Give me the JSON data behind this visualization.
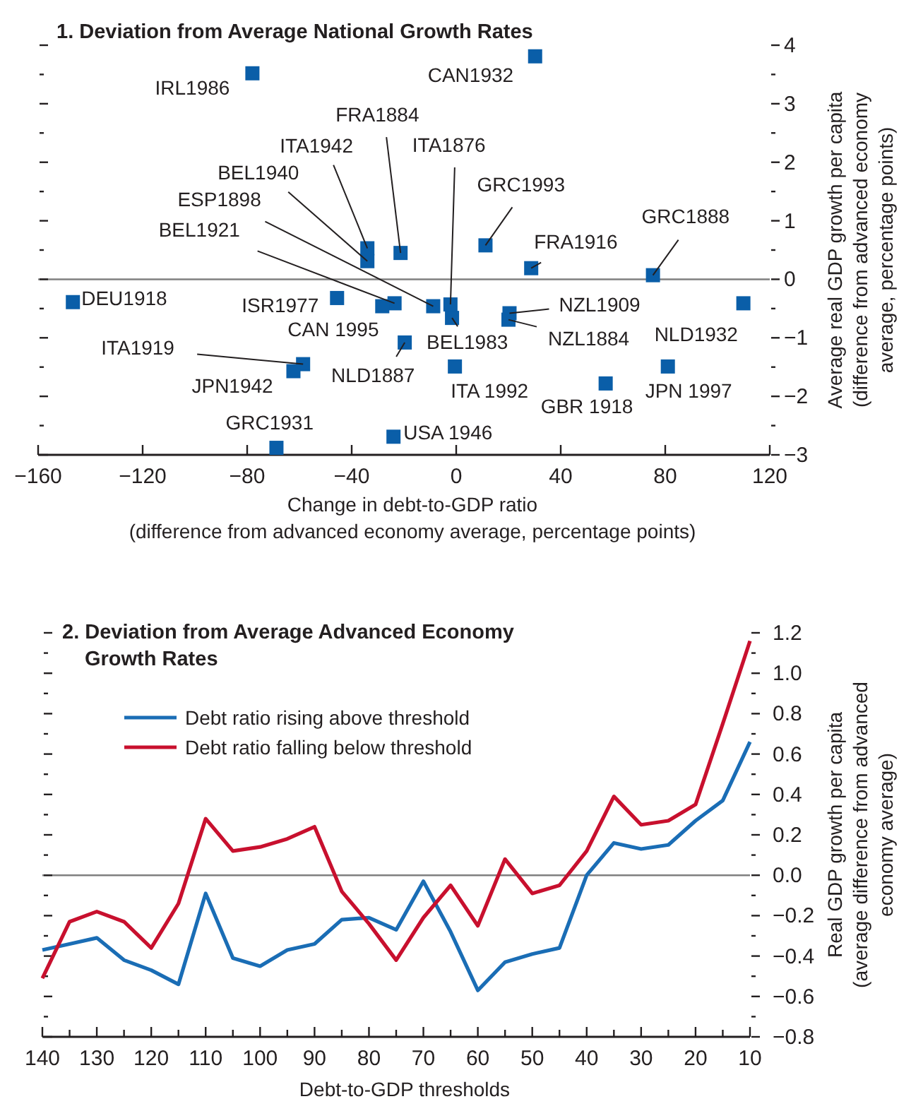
{
  "chart_data": [
    {
      "type": "scatter",
      "title": "1.  Deviation from Average National Growth Rates",
      "xlabel": "Change in debt-to-GDP ratio\n(difference from advanced economy average, percentage points)",
      "ylabel": "Average real GDP growth per capita\n(difference from advanced economy\naverage, percentage points)",
      "marker": "square",
      "grid": false,
      "legend": false,
      "series": [
        {
          "color": "#0a5ea8",
          "x": [
            -78,
            30.2,
            -21.3,
            -34,
            -34,
            -8.8,
            -23.6,
            -2.2,
            11.2,
            28.7,
            75.3,
            -146.7,
            -45.6,
            -28.3,
            -1.6,
            20.4,
            20,
            109.9,
            -19.7,
            -58.6,
            -62.3,
            -0.5,
            57.2,
            81,
            -68.8,
            -24
          ],
          "values": [
            3.52,
            3.81,
            0.45,
            0.53,
            0.31,
            -0.46,
            -0.41,
            -0.43,
            0.58,
            0.19,
            0.07,
            -0.39,
            -0.32,
            -0.46,
            -0.66,
            -0.58,
            -0.69,
            -0.41,
            -1.08,
            -1.45,
            -1.57,
            -1.49,
            -1.78,
            -1.49,
            -2.88,
            -2.69
          ]
        }
      ],
      "annotations": [
        {
          "text": "IRL1986",
          "x": -78,
          "y": 3.52
        },
        {
          "text": "CAN1932",
          "x": 30.2,
          "y": 3.81
        },
        {
          "text": "FRA1884",
          "x": -21.3,
          "y": 0.45
        },
        {
          "text": "ITA1942",
          "x": -34,
          "y": 0.53
        },
        {
          "text": "BEL1940",
          "x": -34,
          "y": 0.31
        },
        {
          "text": "ESP1898",
          "x": -8.8,
          "y": -0.46
        },
        {
          "text": "BEL1921",
          "x": -23.6,
          "y": -0.41
        },
        {
          "text": "ITA1876",
          "x": -2.2,
          "y": -0.43
        },
        {
          "text": "GRC1993",
          "x": 11.2,
          "y": 0.58
        },
        {
          "text": "FRA1916",
          "x": 28.7,
          "y": 0.19
        },
        {
          "text": "GRC1888",
          "x": 75.3,
          "y": 0.07
        },
        {
          "text": "DEU1918",
          "x": -146.7,
          "y": -0.39
        },
        {
          "text": "ISR1977",
          "x": -45.6,
          "y": -0.32
        },
        {
          "text": "CAN 1995",
          "x": -28.3,
          "y": -0.46
        },
        {
          "text": "BEL1983",
          "x": -1.6,
          "y": -0.66
        },
        {
          "text": "NZL1909",
          "x": 20.4,
          "y": -0.58
        },
        {
          "text": "NZL1884",
          "x": 20,
          "y": -0.69
        },
        {
          "text": "NLD1932",
          "x": 109.9,
          "y": -0.41
        },
        {
          "text": "NLD1887",
          "x": -19.7,
          "y": -1.08
        },
        {
          "text": "ITA1919",
          "x": -58.6,
          "y": -1.45
        },
        {
          "text": "JPN1942",
          "x": -62.3,
          "y": -1.57
        },
        {
          "text": "ITA 1992",
          "x": -0.5,
          "y": -1.49
        },
        {
          "text": "GBR 1918",
          "x": 57.2,
          "y": -1.78
        },
        {
          "text": "JPN 1997",
          "x": 81,
          "y": -1.49
        },
        {
          "text": "GRC1931",
          "x": -68.8,
          "y": -2.88
        },
        {
          "text": "USA 1946",
          "x": -24,
          "y": -2.69
        }
      ],
      "xlim": [
        -160,
        120
      ],
      "xticks": [
        {
          "value": -160,
          "label": "−160"
        },
        {
          "value": -120,
          "label": "−120"
        },
        {
          "value": -80,
          "label": "−80"
        },
        {
          "value": -40,
          "label": "−40"
        },
        0,
        40,
        80,
        120
      ],
      "ylim": [
        -3,
        4
      ],
      "yticks": [
        {
          "value": -3,
          "label": "−3"
        },
        {
          "value": -2.5,
          "label": null
        },
        {
          "value": -2,
          "label": "−2"
        },
        {
          "value": -1.5,
          "label": null
        },
        {
          "value": -1,
          "label": "−1"
        },
        {
          "value": -0.5,
          "label": null
        },
        0,
        {
          "value": 0.5,
          "label": null
        },
        1,
        {
          "value": 1.5,
          "label": null
        },
        2,
        {
          "value": 2.5,
          "label": null
        },
        3,
        {
          "value": 3.5,
          "label": null
        },
        4
      ],
      "ref_lines": [
        {
          "axis": "y",
          "value": 0,
          "color": "#808080"
        }
      ]
    },
    {
      "type": "line",
      "title": "2. Deviation from Average Advanced Economy\nGrowth Rates",
      "xlabel": "Debt-to-GDP thresholds",
      "ylabel": "Real GDP growth per capita\n(average difference from advanced\neconomy average)",
      "legend": "top left",
      "grid": false,
      "marker": "none",
      "line_style": "solid",
      "x": [
        140,
        135,
        130,
        125,
        120,
        115,
        110,
        105,
        100,
        95,
        90,
        85,
        80,
        75,
        70,
        65,
        60,
        55,
        50,
        45,
        40,
        35,
        30,
        25,
        20,
        15,
        10
      ],
      "series": [
        {
          "name": "Debt ratio rising above threshold",
          "color": "#1a6db5",
          "values": [
            -0.37,
            -0.34,
            -0.31,
            -0.42,
            -0.47,
            -0.54,
            -0.09,
            -0.41,
            -0.45,
            -0.37,
            -0.34,
            -0.22,
            -0.21,
            -0.27,
            -0.03,
            -0.28,
            -0.57,
            -0.43,
            -0.39,
            -0.36,
            0.0,
            0.16,
            0.13,
            0.15,
            0.27,
            0.37,
            0.66
          ]
        },
        {
          "name": "Debt ratio falling below threshold",
          "color": "#c8102e",
          "values": [
            -0.51,
            -0.23,
            -0.18,
            -0.23,
            -0.36,
            -0.14,
            0.28,
            0.12,
            0.14,
            0.18,
            0.24,
            -0.08,
            -0.24,
            -0.42,
            -0.21,
            -0.05,
            -0.25,
            0.08,
            -0.09,
            -0.05,
            0.12,
            0.39,
            0.25,
            0.27,
            0.35,
            0.75,
            1.16
          ]
        }
      ],
      "xlim": [
        140,
        10
      ],
      "xticks": [
        140,
        {
          "value": 135,
          "label": null
        },
        130,
        {
          "value": 125,
          "label": null
        },
        120,
        {
          "value": 115,
          "label": null
        },
        110,
        {
          "value": 105,
          "label": null
        },
        100,
        {
          "value": 95,
          "label": null
        },
        90,
        {
          "value": 85,
          "label": null
        },
        80,
        {
          "value": 75,
          "label": null
        },
        70,
        {
          "value": 65,
          "label": null
        },
        60,
        {
          "value": 55,
          "label": null
        },
        50,
        {
          "value": 45,
          "label": null
        },
        40,
        {
          "value": 35,
          "label": null
        },
        30,
        {
          "value": 25,
          "label": null
        },
        20,
        {
          "value": 15,
          "label": null
        },
        10
      ],
      "ylim": [
        -0.8,
        1.2
      ],
      "yticks": [
        {
          "value": -0.8,
          "label": "−0.8"
        },
        {
          "value": -0.7,
          "label": null
        },
        {
          "value": -0.6,
          "label": "−0.6"
        },
        {
          "value": -0.5,
          "label": null
        },
        {
          "value": -0.4,
          "label": "−0.4"
        },
        {
          "value": -0.3,
          "label": null
        },
        {
          "value": -0.2,
          "label": "−0.2"
        },
        {
          "value": -0.1,
          "label": null
        },
        {
          "value": 0,
          "label": "0.0"
        },
        {
          "value": 0.1,
          "label": null
        },
        0.2,
        {
          "value": 0.3,
          "label": null
        },
        0.4,
        {
          "value": 0.5,
          "label": null
        },
        0.6,
        {
          "value": 0.7,
          "label": null
        },
        0.8,
        {
          "value": 0.9,
          "label": null
        },
        {
          "value": 1,
          "label": "1.0"
        },
        {
          "value": 1.1,
          "label": null
        },
        1.2
      ],
      "ref_lines": [
        {
          "axis": "y",
          "value": 0,
          "color": "#808080"
        }
      ]
    }
  ]
}
